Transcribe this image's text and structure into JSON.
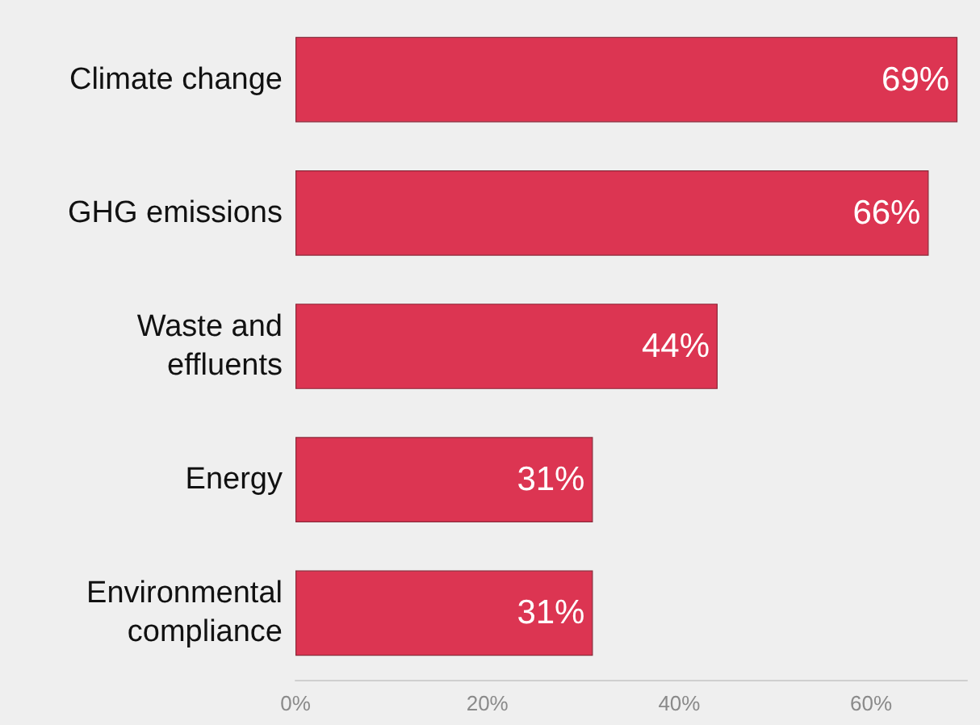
{
  "chart_data": {
    "type": "bar",
    "orientation": "horizontal",
    "categories": [
      "Climate change",
      "GHG emissions",
      "Waste and\neffluents",
      "Energy",
      "Environmental\ncompliance"
    ],
    "values": [
      69,
      66,
      44,
      31,
      31
    ],
    "color": "#dc3552",
    "value_labels": [
      "69%",
      "66%",
      "44%",
      "31%",
      "31%"
    ],
    "xlim": [
      0,
      70
    ],
    "xticks": [
      {
        "value": 0,
        "label": "0%"
      },
      {
        "value": 20,
        "label": "20%"
      },
      {
        "value": 40,
        "label": "40%"
      },
      {
        "value": 60,
        "label": "60%"
      }
    ],
    "grid": false
  }
}
